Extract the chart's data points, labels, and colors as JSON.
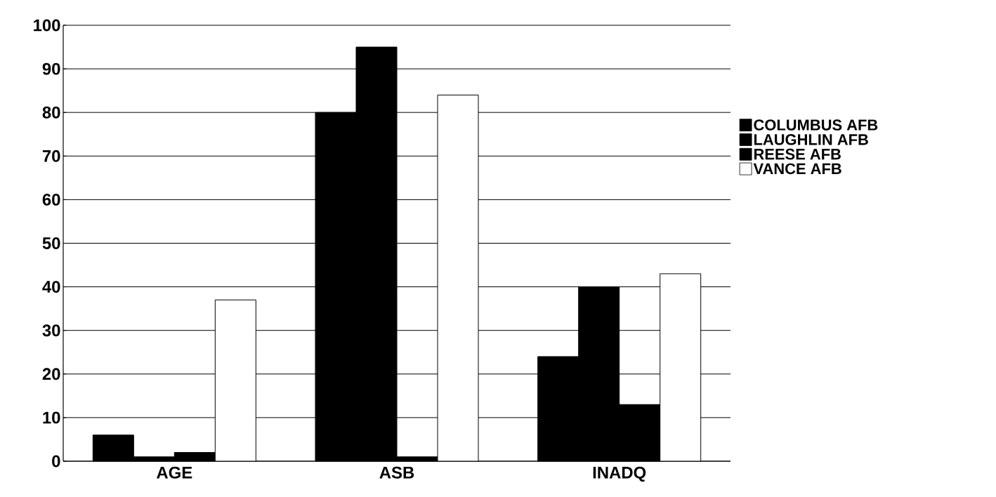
{
  "chart_data": {
    "type": "bar",
    "categories": [
      "AGE",
      "ASB",
      "INADQ"
    ],
    "series": [
      {
        "name": "COLUMBUS AFB",
        "color": "#000000",
        "values": [
          6,
          80,
          24
        ]
      },
      {
        "name": "LAUGHLIN AFB",
        "color": "#000000",
        "values": [
          1,
          95,
          40
        ]
      },
      {
        "name": "REESE AFB",
        "color": "#000000",
        "values": [
          2,
          1,
          13
        ]
      },
      {
        "name": "VANCE AFB",
        "color": "#ffffff",
        "values": [
          37,
          84,
          43
        ]
      }
    ],
    "ylim": [
      0,
      100
    ],
    "yticks": [
      0,
      10,
      20,
      30,
      40,
      50,
      60,
      70,
      80,
      90,
      100
    ],
    "grid": "y",
    "legend": "right"
  }
}
